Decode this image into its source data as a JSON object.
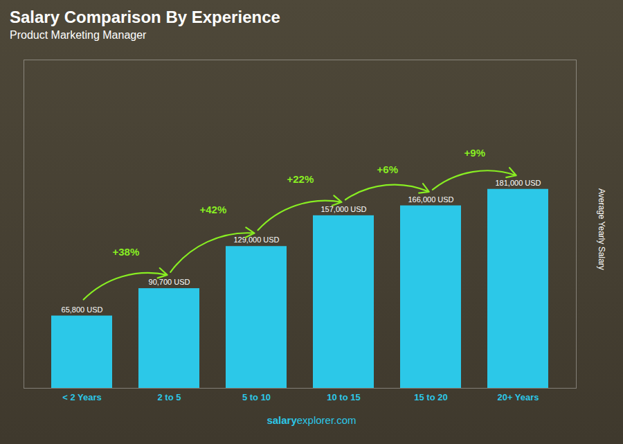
{
  "chart_data": {
    "type": "bar",
    "title": "Salary Comparison By Experience",
    "subtitle": "Product Marketing Manager",
    "categories": [
      "< 2 Years",
      "2 to 5",
      "5 to 10",
      "10 to 15",
      "15 to 20",
      "20+ Years"
    ],
    "values": [
      65800,
      90700,
      129000,
      157000,
      166000,
      181000
    ],
    "value_labels": [
      "65,800 USD",
      "90,700 USD",
      "129,000 USD",
      "157,000 USD",
      "166,000 USD",
      "181,000 USD"
    ],
    "data_labels": true,
    "color": "#2cc8e8",
    "ylim": [
      0,
      298650
    ],
    "ylabel": "Average Yearly Salary",
    "tick_labels": "x",
    "annotations": [
      {
        "text": "+38%",
        "from": "< 2 Years",
        "to": "2 to 5",
        "color": "#88ee22"
      },
      {
        "text": "+42%",
        "from": "2 to 5",
        "to": "5 to 10",
        "color": "#88ee22"
      },
      {
        "text": "+22%",
        "from": "5 to 10",
        "to": "10 to 15",
        "color": "#88ee22"
      },
      {
        "text": "+6%",
        "from": "10 to 15",
        "to": "15 to 20",
        "color": "#88ee22"
      },
      {
        "text": "+9%",
        "from": "15 to 20",
        "to": "20+ Years",
        "color": "#88ee22"
      }
    ],
    "caption": [
      "salary",
      "explorer.com"
    ]
  }
}
